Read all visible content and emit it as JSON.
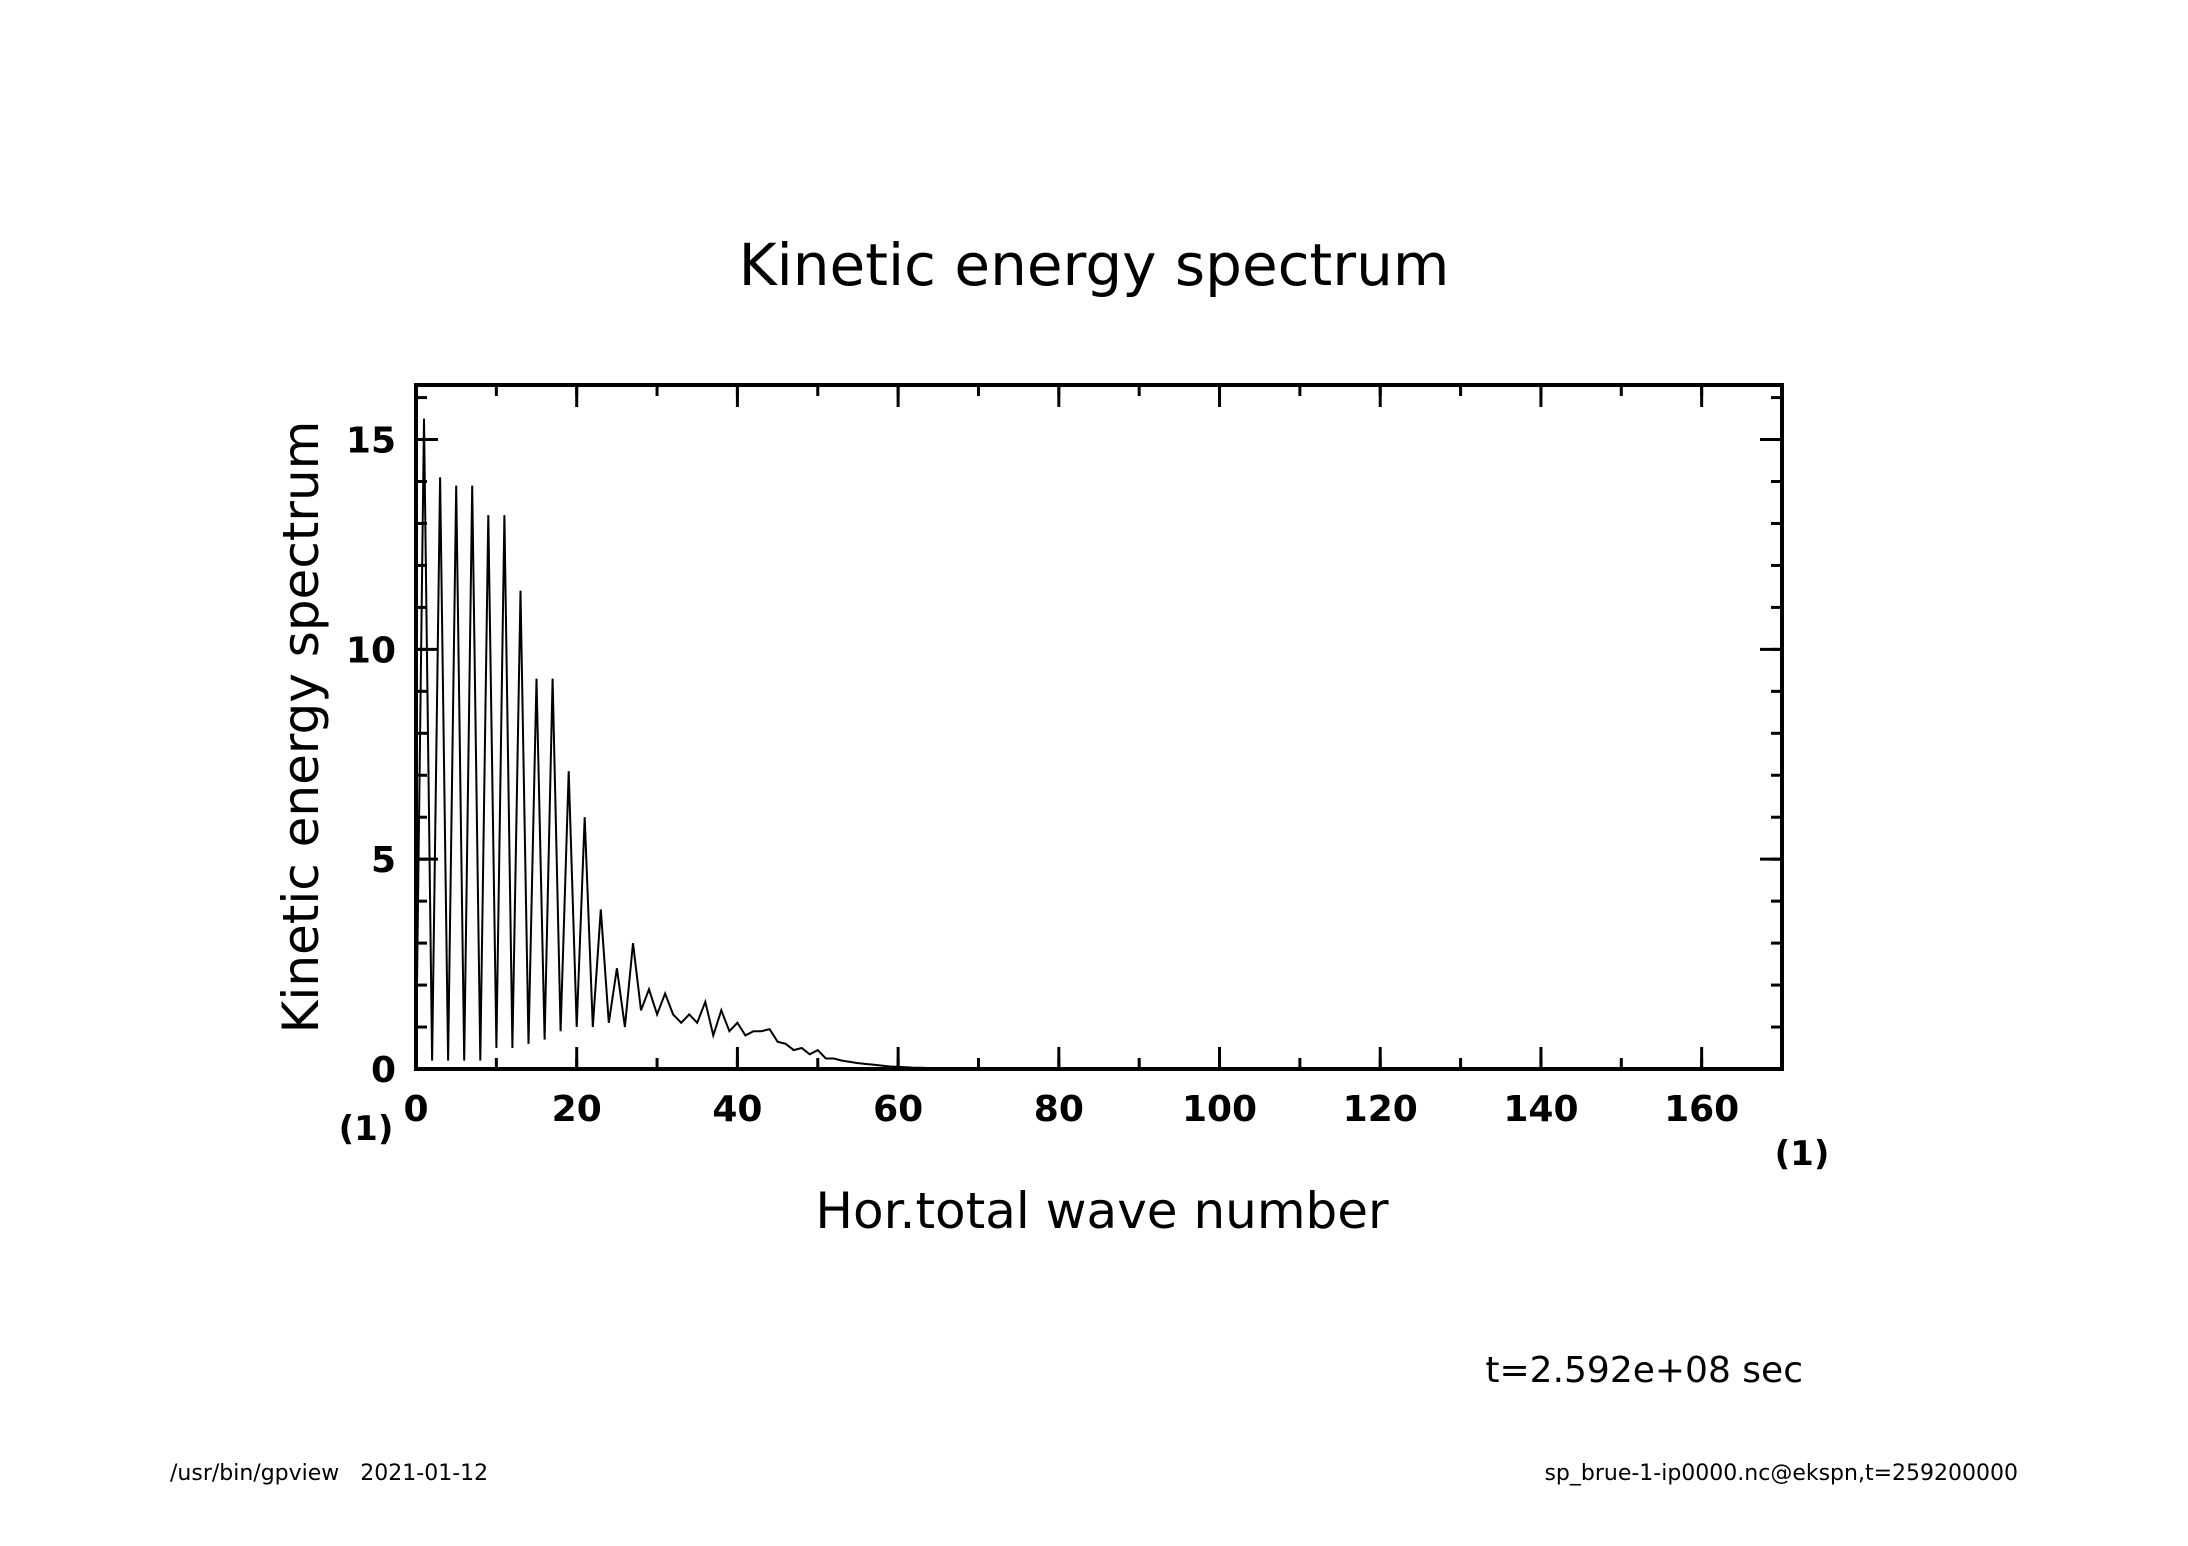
{
  "footer": {
    "left": "/usr/bin/gpview   2021-01-12",
    "right": "sp_brue-1-ip0000.nc@ekspn,t=259200000"
  },
  "time_label": "t=2.592e+08 sec",
  "chart_data": {
    "type": "line",
    "title": "Kinetic energy spectrum",
    "xlabel": "Hor.total wave number",
    "ylabel": "Kinetic energy spectrum",
    "x_unit": "(1)",
    "y_unit": "(1)",
    "xlim": [
      0,
      170
    ],
    "ylim": [
      0,
      16.3
    ],
    "x_major_ticks": [
      0,
      20,
      40,
      60,
      80,
      100,
      120,
      140,
      160
    ],
    "x_minor_step": 10,
    "y_major_ticks": [
      0,
      5,
      10,
      15
    ],
    "y_minor_step": 1,
    "grid": false,
    "legend": "none",
    "color": "#000000",
    "series": [
      {
        "x": [
          0,
          1,
          2,
          3,
          4,
          5,
          6,
          7,
          8,
          9,
          10,
          11,
          12,
          13,
          14,
          15,
          16,
          17,
          18,
          19,
          20,
          21,
          22,
          23,
          24,
          25,
          26,
          27,
          28,
          29,
          30,
          31,
          32,
          33,
          34,
          35,
          36,
          37,
          38,
          39,
          40,
          41,
          42,
          43,
          44,
          45,
          46,
          47,
          48,
          49,
          50,
          51,
          52,
          53,
          54,
          55,
          56,
          57,
          58,
          59,
          60,
          61,
          62,
          63,
          64,
          65,
          66,
          67,
          68,
          69,
          70,
          72,
          74,
          76,
          78,
          80,
          85,
          90,
          100,
          110,
          120,
          130,
          140,
          150,
          160,
          170
        ],
        "y": [
          0.1,
          15.5,
          0.2,
          14.1,
          0.2,
          13.9,
          0.2,
          13.9,
          0.2,
          13.2,
          0.5,
          13.2,
          0.5,
          11.4,
          0.6,
          9.3,
          0.7,
          9.3,
          0.9,
          7.1,
          1.0,
          6.0,
          1.0,
          3.8,
          1.1,
          2.4,
          1.0,
          3.0,
          1.4,
          1.9,
          1.3,
          1.8,
          1.3,
          1.1,
          1.3,
          1.1,
          1.6,
          0.8,
          1.4,
          0.9,
          1.1,
          0.8,
          0.9,
          0.9,
          0.95,
          0.65,
          0.6,
          0.45,
          0.5,
          0.35,
          0.45,
          0.25,
          0.25,
          0.2,
          0.17,
          0.14,
          0.12,
          0.1,
          0.08,
          0.06,
          0.05,
          0.04,
          0.03,
          0.03,
          0.02,
          0.02,
          0.015,
          0.012,
          0.01,
          0.008,
          0.006,
          0.004,
          0.003,
          0.002,
          0.001,
          0.001,
          0,
          0,
          0,
          0,
          0,
          0,
          0,
          0,
          0,
          0
        ]
      }
    ]
  }
}
